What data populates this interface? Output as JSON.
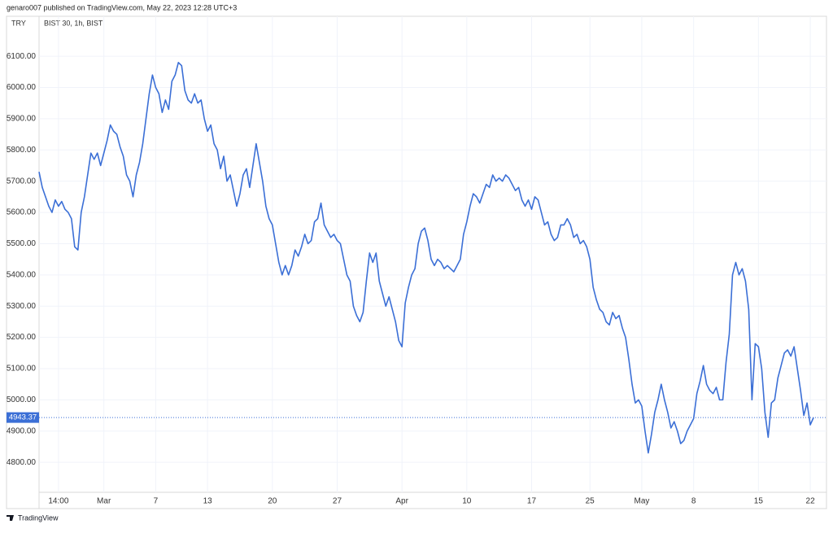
{
  "header": {
    "note": "genaro007 published on TradingView.com, May 22, 2023 12:28 UTC+3"
  },
  "footer": {
    "brand": "TradingView"
  },
  "chart_data": {
    "type": "line",
    "title": "BIST 30, 1h, BIST",
    "currency": "TRY",
    "x": [
      0,
      1,
      2,
      3,
      4,
      5,
      6,
      7,
      8,
      9,
      10,
      11,
      12,
      13,
      14,
      15,
      16,
      17,
      18,
      19,
      20,
      21,
      22,
      23,
      24,
      25,
      26,
      27,
      28,
      29,
      30,
      31,
      32,
      33,
      34,
      35,
      36,
      37,
      38,
      39,
      40,
      41,
      42,
      43,
      44,
      45,
      46,
      47,
      48,
      49,
      50,
      51,
      52,
      53,
      54,
      55,
      56,
      57,
      58,
      59,
      60,
      61,
      62,
      63,
      64,
      65,
      66,
      67,
      68,
      69,
      70,
      71,
      72,
      73,
      74,
      75,
      76,
      77,
      78,
      79,
      80,
      81,
      82,
      83,
      84,
      85,
      86,
      87,
      88,
      89,
      90,
      91,
      92,
      93,
      94,
      95,
      96,
      97,
      98,
      99,
      100,
      101,
      102,
      103,
      104,
      105,
      106,
      107,
      108,
      109,
      110,
      111,
      112,
      113,
      114,
      115,
      116,
      117,
      118,
      119,
      120,
      121,
      122,
      123,
      124,
      125,
      126,
      127,
      128,
      129,
      130,
      131,
      132,
      133,
      134,
      135,
      136,
      137,
      138,
      139,
      140,
      141,
      142,
      143,
      144,
      145,
      146,
      147,
      148,
      149,
      150,
      151,
      152,
      153,
      154,
      155,
      156,
      157,
      158,
      159,
      160,
      161,
      162,
      163,
      164,
      165,
      166,
      167,
      168,
      169,
      170,
      171,
      172,
      173,
      174,
      175,
      176,
      177,
      178,
      179,
      180,
      181,
      182,
      183,
      184,
      185,
      186,
      187,
      188,
      189,
      190,
      191,
      192,
      193,
      194,
      195,
      196,
      197,
      198,
      199,
      200,
      201,
      202,
      203,
      204,
      205,
      206,
      207,
      208,
      209,
      210,
      211,
      212,
      213,
      214,
      215,
      216,
      217,
      218,
      219,
      220,
      221,
      222,
      223,
      224,
      225,
      226,
      227,
      228,
      229,
      230,
      231,
      232,
      233,
      234,
      235,
      236,
      237,
      238,
      239
    ],
    "series": [
      {
        "name": "BIST 30",
        "color": "#3b6fd6",
        "values": [
          5730,
          5680,
          5650,
          5620,
          5600,
          5640,
          5620,
          5635,
          5610,
          5600,
          5580,
          5490,
          5480,
          5600,
          5650,
          5720,
          5790,
          5770,
          5790,
          5750,
          5790,
          5830,
          5880,
          5860,
          5850,
          5810,
          5780,
          5720,
          5700,
          5650,
          5720,
          5760,
          5820,
          5900,
          5980,
          6040,
          6000,
          5980,
          5920,
          5960,
          5930,
          6020,
          6040,
          6080,
          6070,
          5990,
          5960,
          5950,
          5980,
          5950,
          5960,
          5900,
          5860,
          5880,
          5820,
          5800,
          5740,
          5780,
          5700,
          5720,
          5670,
          5620,
          5660,
          5720,
          5740,
          5680,
          5750,
          5820,
          5760,
          5700,
          5620,
          5580,
          5560,
          5500,
          5440,
          5400,
          5430,
          5400,
          5430,
          5480,
          5460,
          5490,
          5530,
          5500,
          5510,
          5570,
          5580,
          5630,
          5560,
          5540,
          5520,
          5530,
          5510,
          5500,
          5450,
          5400,
          5380,
          5300,
          5270,
          5250,
          5280,
          5380,
          5470,
          5440,
          5470,
          5380,
          5340,
          5300,
          5330,
          5290,
          5250,
          5190,
          5170,
          5310,
          5360,
          5400,
          5420,
          5500,
          5540,
          5550,
          5510,
          5450,
          5430,
          5450,
          5440,
          5420,
          5430,
          5420,
          5410,
          5430,
          5450,
          5530,
          5570,
          5620,
          5660,
          5650,
          5630,
          5660,
          5690,
          5680,
          5720,
          5700,
          5710,
          5700,
          5720,
          5710,
          5690,
          5670,
          5680,
          5640,
          5620,
          5640,
          5610,
          5650,
          5640,
          5600,
          5560,
          5570,
          5530,
          5510,
          5520,
          5560,
          5560,
          5580,
          5560,
          5520,
          5530,
          5500,
          5510,
          5490,
          5450,
          5360,
          5320,
          5290,
          5280,
          5250,
          5240,
          5280,
          5260,
          5270,
          5230,
          5200,
          5130,
          5050,
          4990,
          5000,
          4980,
          4900,
          4830,
          4890,
          4960,
          5000,
          5050,
          5000,
          4960,
          4910,
          4930,
          4900,
          4860,
          4870,
          4900,
          4920,
          4940,
          5020,
          5060,
          5110,
          5050,
          5030,
          5020,
          5040,
          5000,
          5000,
          5120,
          5210,
          5400,
          5440,
          5400,
          5420,
          5380,
          5290,
          5000,
          5180,
          5170,
          5100,
          4960,
          4880,
          4990,
          5000,
          5070,
          5110,
          5150,
          5160,
          5140,
          5170,
          5100,
          5030,
          4950,
          4990,
          4920,
          4943.37
        ]
      }
    ],
    "last_price": 4943.37,
    "xlim": [
      0,
      243
    ],
    "xticks": [
      {
        "value": 6,
        "label": "14:00"
      },
      {
        "value": 20,
        "label": "Mar"
      },
      {
        "value": 36,
        "label": "7"
      },
      {
        "value": 52,
        "label": "13"
      },
      {
        "value": 72,
        "label": "20"
      },
      {
        "value": 92,
        "label": "27"
      },
      {
        "value": 112,
        "label": "Apr"
      },
      {
        "value": 132,
        "label": "10"
      },
      {
        "value": 152,
        "label": "17"
      },
      {
        "value": 170,
        "label": "25"
      },
      {
        "value": 186,
        "label": "May"
      },
      {
        "value": 202,
        "label": "8"
      },
      {
        "value": 222,
        "label": "15"
      },
      {
        "value": 238,
        "label": "22"
      }
    ],
    "ylim": [
      4704,
      6228
    ],
    "yticks": [
      {
        "value": 4800,
        "label": "4800.00"
      },
      {
        "value": 4900,
        "label": "4900.00"
      },
      {
        "value": 5000,
        "label": "5000.00"
      },
      {
        "value": 5100,
        "label": "5100.00"
      },
      {
        "value": 5200,
        "label": "5200.00"
      },
      {
        "value": 5300,
        "label": "5300.00"
      },
      {
        "value": 5400,
        "label": "5400.00"
      },
      {
        "value": 5500,
        "label": "5500.00"
      },
      {
        "value": 5600,
        "label": "5600.00"
      },
      {
        "value": 5700,
        "label": "5700.00"
      },
      {
        "value": 5800,
        "label": "5800.00"
      },
      {
        "value": 5900,
        "label": "5900.00"
      },
      {
        "value": 6000,
        "label": "6000.00"
      },
      {
        "value": 6100,
        "label": "6100.00"
      }
    ],
    "grid": true
  }
}
